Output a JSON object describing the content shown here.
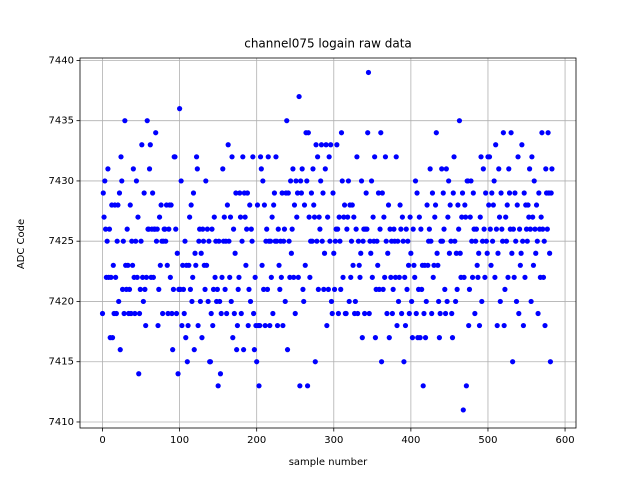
{
  "chart_data": {
    "type": "scatter",
    "title": "channel075 logain raw data",
    "x_label": "sample number",
    "y_label": "ADC Code",
    "color": "#0000ff",
    "grid": true,
    "xlim": [
      -29.2,
      614.2
    ],
    "ylim": [
      7409.5,
      7440.2
    ],
    "xticks": [
      0,
      100,
      200,
      300,
      400,
      500,
      600
    ],
    "yticks": [
      7410,
      7415,
      7420,
      7425,
      7430,
      7435,
      7440
    ],
    "x": [
      0,
      1,
      2,
      3,
      4,
      5,
      6,
      7,
      8,
      9,
      10,
      11,
      12,
      13,
      14,
      15,
      16,
      17,
      18,
      19,
      20,
      21,
      22,
      23,
      24,
      25,
      26,
      27,
      28,
      29,
      30,
      31,
      32,
      33,
      34,
      35,
      36,
      37,
      38,
      39,
      40,
      41,
      42,
      43,
      44,
      45,
      46,
      47,
      48,
      49,
      50,
      51,
      52,
      53,
      54,
      55,
      56,
      57,
      58,
      59,
      60,
      61,
      62,
      63,
      64,
      65,
      66,
      67,
      68,
      69,
      70,
      71,
      72,
      73,
      74,
      75,
      76,
      77,
      78,
      79,
      80,
      81,
      82,
      83,
      84,
      85,
      86,
      87,
      88,
      89,
      90,
      91,
      92,
      93,
      94,
      95,
      96,
      97,
      98,
      99,
      100,
      101,
      102,
      103,
      104,
      105,
      106,
      107,
      108,
      109,
      110,
      111,
      112,
      113,
      114,
      115,
      116,
      117,
      118,
      119,
      120,
      121,
      122,
      123,
      124,
      125,
      126,
      127,
      128,
      129,
      130,
      131,
      132,
      133,
      134,
      135,
      136,
      137,
      138,
      139,
      140,
      141,
      142,
      143,
      144,
      145,
      146,
      147,
      148,
      149,
      150,
      151,
      152,
      153,
      154,
      155,
      156,
      157,
      158,
      159,
      160,
      161,
      162,
      163,
      164,
      165,
      166,
      167,
      168,
      169,
      170,
      171,
      172,
      173,
      174,
      175,
      176,
      177,
      178,
      179,
      180,
      181,
      182,
      183,
      184,
      185,
      186,
      187,
      188,
      189,
      190,
      191,
      192,
      193,
      194,
      195,
      196,
      197,
      198,
      199,
      200,
      201,
      202,
      203,
      204,
      205,
      206,
      207,
      208,
      209,
      210,
      211,
      212,
      213,
      214,
      215,
      216,
      217,
      218,
      219,
      220,
      221,
      222,
      223,
      224,
      225,
      226,
      227,
      228,
      229,
      230,
      231,
      232,
      233,
      234,
      235,
      236,
      237,
      238,
      239,
      240,
      241,
      242,
      243,
      244,
      245,
      246,
      247,
      248,
      249,
      250,
      251,
      252,
      253,
      254,
      255,
      256,
      257,
      258,
      259,
      260,
      261,
      262,
      263,
      264,
      265,
      266,
      267,
      268,
      269,
      270,
      271,
      272,
      273,
      274,
      275,
      276,
      277,
      278,
      279,
      280,
      281,
      282,
      283,
      284,
      285,
      286,
      287,
      288,
      289,
      290,
      291,
      292,
      293,
      294,
      295,
      296,
      297,
      298,
      299,
      300,
      301,
      302,
      303,
      304,
      305,
      306,
      307,
      308,
      309,
      310,
      311,
      312,
      313,
      314,
      315,
      316,
      317,
      318,
      319,
      320,
      321,
      322,
      323,
      324,
      325,
      326,
      327,
      328,
      329,
      330,
      331,
      332,
      333,
      334,
      335,
      336,
      337,
      338,
      339,
      340,
      341,
      342,
      343,
      344,
      345,
      346,
      347,
      348,
      349,
      350,
      351,
      352,
      353,
      354,
      355,
      356,
      357,
      358,
      359,
      360,
      361,
      362,
      363,
      364,
      365,
      366,
      367,
      368,
      369,
      370,
      371,
      372,
      373,
      374,
      375,
      376,
      377,
      378,
      379,
      380,
      381,
      382,
      383,
      384,
      385,
      386,
      387,
      388,
      389,
      390,
      391,
      392,
      393,
      394,
      395,
      396,
      397,
      398,
      399,
      400,
      401,
      402,
      403,
      404,
      405,
      406,
      407,
      408,
      409,
      410,
      411,
      412,
      413,
      414,
      415,
      416,
      417,
      418,
      419,
      420,
      421,
      422,
      423,
      424,
      425,
      426,
      427,
      428,
      429,
      430,
      431,
      432,
      433,
      434,
      435,
      436,
      437,
      438,
      439,
      440,
      441,
      442,
      443,
      444,
      445,
      446,
      447,
      448,
      449,
      450,
      451,
      452,
      453,
      454,
      455,
      456,
      457,
      458,
      459,
      460,
      461,
      462,
      463,
      464,
      465,
      466,
      467,
      468,
      469,
      470,
      471,
      472,
      473,
      474,
      475,
      476,
      477,
      478,
      479,
      480,
      481,
      482,
      483,
      484,
      485,
      486,
      487,
      488,
      489,
      490,
      491,
      492,
      493,
      494,
      495,
      496,
      497,
      498,
      499,
      500,
      501,
      502,
      503,
      504,
      505,
      506,
      507,
      508,
      509,
      510,
      511,
      512,
      513,
      514,
      515,
      516,
      517,
      518,
      519,
      520,
      521,
      522,
      523,
      524,
      525,
      526,
      527,
      528,
      529,
      530,
      531,
      532,
      533,
      534,
      535,
      536,
      537,
      538,
      539,
      540,
      541,
      542,
      543,
      544,
      545,
      546,
      547,
      548,
      549,
      550,
      551,
      552,
      553,
      554,
      555,
      556,
      557,
      558,
      559,
      560,
      561,
      562,
      563,
      564,
      565,
      566,
      567,
      568,
      569,
      570,
      571,
      572,
      573,
      574,
      575,
      576,
      577,
      578,
      579,
      580,
      581,
      582,
      583
    ],
    "values": [
      7419,
      7429,
      7427,
      7430,
      7426,
      7422,
      7425,
      7431,
      7422,
      7426,
      7417,
      7422,
      7428,
      7417,
      7423,
      7419,
      7428,
      7422,
      7419,
      7425,
      7428,
      7420,
      7429,
      7416,
      7432,
      7430,
      7421,
      7425,
      7419,
      7435,
      7423,
      7421,
      7426,
      7423,
      7419,
      7421,
      7428,
      7419,
      7425,
      7423,
      7431,
      7422,
      7419,
      7425,
      7430,
      7422,
      7427,
      7414,
      7419,
      7421,
      7425,
      7433,
      7422,
      7420,
      7429,
      7421,
      7418,
      7422,
      7435,
      7426,
      7426,
      7431,
      7433,
      7422,
      7426,
      7429,
      7422,
      7426,
      7426,
      7434,
      7425,
      7426,
      7418,
      7421,
      7427,
      7423,
      7428,
      7425,
      7419,
      7425,
      7426,
      7426,
      7425,
      7428,
      7423,
      7419,
      7426,
      7428,
      7422,
      7428,
      7419,
      7416,
      7421,
      7432,
      7432,
      7426,
      7419,
      7424,
      7414,
      7421,
      7436,
      7421,
      7430,
      7418,
      7423,
      7421,
      7419,
      7425,
      7417,
      7423,
      7415,
      7418,
      7423,
      7427,
      7421,
      7428,
      7420,
      7422,
      7429,
      7416,
      7424,
      7423,
      7432,
      7431,
      7418,
      7425,
      7426,
      7420,
      7424,
      7417,
      7426,
      7425,
      7423,
      7421,
      7430,
      7423,
      7426,
      7420,
      7425,
      7415,
      7415,
      7419,
      7426,
      7418,
      7421,
      7427,
      7422,
      7425,
      7420,
      7421,
      7413,
      7425,
      7420,
      7414,
      7419,
      7422,
      7431,
      7425,
      7427,
      7421,
      7425,
      7419,
      7428,
      7433,
      7425,
      7422,
      7427,
      7420,
      7432,
      7417,
      7426,
      7419,
      7424,
      7429,
      7416,
      7418,
      7421,
      7422,
      7429,
      7427,
      7419,
      7425,
      7432,
      7416,
      7429,
      7427,
      7423,
      7426,
      7429,
      7418,
      7421,
      7428,
      7420,
      7426,
      7425,
      7432,
      7419,
      7416,
      7422,
      7418,
      7415,
      7428,
      7418,
      7413,
      7418,
      7432,
      7431,
      7423,
      7430,
      7421,
      7428,
      7418,
      7425,
      7426,
      7421,
      7432,
      7425,
      7418,
      7425,
      7422,
      7427,
      7419,
      7428,
      7429,
      7425,
      7432,
      7425,
      7418,
      7426,
      7423,
      7421,
      7425,
      7422,
      7429,
      7418,
      7425,
      7426,
      7420,
      7429,
      7435,
      7416,
      7429,
      7425,
      7422,
      7430,
      7424,
      7426,
      7431,
      7422,
      7428,
      7419,
      7430,
      7427,
      7429,
      7422,
      7437,
      7413,
      7430,
      7429,
      7431,
      7421,
      7420,
      7428,
      7423,
      7434,
      7430,
      7413,
      7434,
      7427,
      7422,
      7425,
      7429,
      7425,
      7431,
      7428,
      7427,
      7415,
      7433,
      7425,
      7432,
      7421,
      7427,
      7426,
      7430,
      7433,
      7425,
      7429,
      7421,
      7424,
      7431,
      7433,
      7418,
      7427,
      7421,
      7432,
      7425,
      7433,
      7420,
      7419,
      7429,
      7424,
      7421,
      7425,
      7426,
      7433,
      7426,
      7419,
      7427,
      7425,
      7421,
      7434,
      7430,
      7422,
      7427,
      7428,
      7419,
      7419,
      7426,
      7427,
      7430,
      7420,
      7428,
      7422,
      7425,
      7428,
      7423,
      7427,
      7419,
      7420,
      7426,
      7432,
      7419,
      7425,
      7423,
      7422,
      7424,
      7430,
      7417,
      7425,
      7426,
      7419,
      7426,
      7429,
      7426,
      7434,
      7439,
      7419,
      7425,
      7424,
      7430,
      7422,
      7427,
      7425,
      7432,
      7417,
      7421,
      7425,
      7423,
      7429,
      7421,
      7426,
      7434,
      7415,
      7429,
      7421,
      7427,
      7422,
      7432,
      7425,
      7419,
      7424,
      7428,
      7417,
      7426,
      7422,
      7425,
      7419,
      7421,
      7426,
      7425,
      7422,
      7432,
      7418,
      7425,
      7420,
      7422,
      7428,
      7426,
      7419,
      7427,
      7425,
      7415,
      7422,
      7418,
      7426,
      7421,
      7425,
      7423,
      7419,
      7427,
      7424,
      7420,
      7417,
      7426,
      7423,
      7422,
      7430,
      7419,
      7429,
      7417,
      7421,
      7427,
      7417,
      7426,
      7421,
      7423,
      7413,
      7419,
      7423,
      7417,
      7420,
      7428,
      7423,
      7425,
      7426,
      7431,
      7425,
      7419,
      7429,
      7422,
      7423,
      7427,
      7428,
      7434,
      7424,
      7423,
      7420,
      7417,
      7419,
      7425,
      7431,
      7425,
      7429,
      7426,
      7421,
      7419,
      7431,
      7420,
      7427,
      7430,
      7424,
      7428,
      7425,
      7419,
      7417,
      7429,
      7432,
      7425,
      7420,
      7424,
      7421,
      7428,
      7426,
      7435,
      7424,
      7422,
      7427,
      7429,
      7411,
      7422,
      7428,
      7427,
      7413,
      7430,
      7430,
      7418,
      7421,
      7427,
      7430,
      7425,
      7422,
      7429,
      7426,
      7419,
      7425,
      7426,
      7423,
      7422,
      7424,
      7418,
      7427,
      7432,
      7420,
      7425,
      7431,
      7426,
      7422,
      7429,
      7425,
      7424,
      7432,
      7428,
      7432,
      7426,
      7423,
      7429,
      7425,
      7428,
      7430,
      7422,
      7433,
      7426,
      7418,
      7424,
      7431,
      7427,
      7420,
      7429,
      7426,
      7425,
      7434,
      7418,
      7421,
      7427,
      7425,
      7428,
      7422,
      7431,
      7429,
      7426,
      7434,
      7424,
      7415,
      7426,
      7422,
      7429,
      7425,
      7420,
      7428,
      7432,
      7419,
      7426,
      7423,
      7424,
      7433,
      7425,
      7418,
      7429,
      7422,
      7428,
      7426,
      7425,
      7428,
      7427,
      7431,
      7426,
      7420,
      7432,
      7427,
      7423,
      7430,
      7426,
      7424,
      7428,
      7425,
      7419,
      7429,
      7426,
      7422,
      7427,
      7434,
      7426,
      7422,
      7425,
      7418,
      7431,
      7429,
      7426,
      7434,
      7429,
      7424,
      7415,
      7429,
      7431
    ]
  }
}
